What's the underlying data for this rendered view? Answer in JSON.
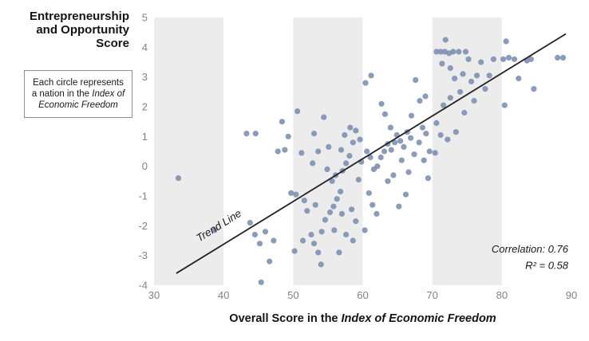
{
  "title": {
    "lines": [
      "Entrepreneurship",
      "and Opportunity",
      "Score"
    ]
  },
  "note": {
    "prefix": "Each circle represents a nation in the ",
    "italic": "Index of Economic Freedom"
  },
  "xaxis": {
    "prefix": "Overall Score in the ",
    "italic": "Index of Economic Freedom"
  },
  "chart_data": {
    "type": "scatter",
    "title": "Entrepreneurship and Opportunity Score",
    "xlabel": "Overall Score in the Index of Economic Freedom",
    "ylabel": "Entrepreneurship and Opportunity Score",
    "xlim": [
      30,
      90
    ],
    "ylim": [
      -4,
      5
    ],
    "x_ticks": [
      30,
      40,
      50,
      60,
      70,
      80,
      90
    ],
    "y_ticks": [
      5,
      4,
      3,
      2,
      1,
      0,
      -1,
      -2,
      -3,
      -4
    ],
    "grid": false,
    "bands": [
      [
        30,
        40
      ],
      [
        50,
        60
      ],
      [
        70,
        80
      ]
    ],
    "band_color": "#ececec",
    "point_color": "#7b8db0",
    "trend_line": {
      "x1": 33.2,
      "y1": -3.6,
      "x2": 89.2,
      "y2": 4.45,
      "label": "Trend Line",
      "label_pos": {
        "x": 36.5,
        "y": -2.55
      }
    },
    "annotations": {
      "correlation": "Correlation: 0.76",
      "r_squared": "R² = 0.58"
    },
    "points": [
      [
        33.5,
        -0.4
      ],
      [
        38.7,
        -2.15
      ],
      [
        43.3,
        1.1
      ],
      [
        44.6,
        1.1
      ],
      [
        43.8,
        -1.9
      ],
      [
        44.5,
        -2.3
      ],
      [
        45.2,
        -2.6
      ],
      [
        46.0,
        -2.2
      ],
      [
        46.6,
        -3.2
      ],
      [
        45.4,
        -3.9
      ],
      [
        47.2,
        -2.5
      ],
      [
        47.8,
        0.5
      ],
      [
        48.8,
        0.55
      ],
      [
        48.4,
        1.5
      ],
      [
        49.3,
        1.0
      ],
      [
        49.7,
        -0.9
      ],
      [
        50.2,
        -2.85
      ],
      [
        50.6,
        1.85
      ],
      [
        51.2,
        0.45
      ],
      [
        50.4,
        -0.95
      ],
      [
        51.6,
        -1.15
      ],
      [
        52.0,
        -1.5
      ],
      [
        52.6,
        -2.3
      ],
      [
        51.4,
        -2.5
      ],
      [
        53.0,
        -2.6
      ],
      [
        53.6,
        -2.9
      ],
      [
        54.0,
        -3.3
      ],
      [
        54.1,
        -2.2
      ],
      [
        54.6,
        -1.8
      ],
      [
        53.2,
        -1.3
      ],
      [
        53.0,
        1.1
      ],
      [
        54.4,
        1.65
      ],
      [
        53.6,
        0.5
      ],
      [
        52.8,
        0.1
      ],
      [
        54.9,
        -0.1
      ],
      [
        55.3,
        -1.55
      ],
      [
        55.8,
        -1.35
      ],
      [
        56.3,
        -1.1
      ],
      [
        56.8,
        -0.85
      ],
      [
        55.6,
        -0.5
      ],
      [
        56.1,
        -0.3
      ],
      [
        57.1,
        -0.15
      ],
      [
        57.6,
        0.1
      ],
      [
        58.1,
        0.35
      ],
      [
        58.6,
        0.8
      ],
      [
        57.4,
        1.05
      ],
      [
        58.2,
        1.3
      ],
      [
        59.0,
        1.2
      ],
      [
        59.6,
        0.9
      ],
      [
        58.4,
        -1.45
      ],
      [
        59.0,
        -1.85
      ],
      [
        57.6,
        -2.3
      ],
      [
        58.6,
        -2.5
      ],
      [
        56.6,
        -2.9
      ],
      [
        59.4,
        -0.45
      ],
      [
        55.1,
        0.65
      ],
      [
        56.9,
        0.55
      ],
      [
        59.8,
        0.15
      ],
      [
        55.9,
        -2.15
      ],
      [
        57.0,
        -1.6
      ],
      [
        60.4,
        2.8
      ],
      [
        61.2,
        3.05
      ],
      [
        60.6,
        0.5
      ],
      [
        61.1,
        0.3
      ],
      [
        61.6,
        -0.1
      ],
      [
        62.1,
        0.0
      ],
      [
        62.6,
        0.3
      ],
      [
        63.1,
        0.5
      ],
      [
        63.6,
        0.75
      ],
      [
        64.1,
        0.55
      ],
      [
        64.6,
        0.8
      ],
      [
        63.2,
        1.75
      ],
      [
        62.7,
        2.1
      ],
      [
        60.9,
        -0.9
      ],
      [
        61.4,
        -1.3
      ],
      [
        60.3,
        -2.15
      ],
      [
        62.0,
        -1.6
      ],
      [
        63.6,
        -0.5
      ],
      [
        64.4,
        -0.3
      ],
      [
        64.0,
        1.3
      ],
      [
        64.9,
        1.05
      ],
      [
        65.4,
        0.85
      ],
      [
        65.9,
        0.65
      ],
      [
        66.4,
        1.15
      ],
      [
        66.9,
        0.95
      ],
      [
        65.6,
        0.2
      ],
      [
        66.6,
        -0.2
      ],
      [
        67.4,
        0.4
      ],
      [
        68.1,
        0.8
      ],
      [
        68.6,
        1.3
      ],
      [
        69.1,
        1.1
      ],
      [
        69.6,
        0.5
      ],
      [
        68.2,
        2.2
      ],
      [
        69.0,
        2.35
      ],
      [
        67.6,
        2.9
      ],
      [
        66.2,
        -0.95
      ],
      [
        65.2,
        -1.35
      ],
      [
        69.4,
        -0.4
      ],
      [
        67.0,
        1.7
      ],
      [
        68.8,
        0.2
      ],
      [
        70.6,
        3.85
      ],
      [
        71.2,
        3.85
      ],
      [
        71.8,
        3.85
      ],
      [
        72.4,
        3.8
      ],
      [
        73.0,
        3.85
      ],
      [
        73.8,
        3.85
      ],
      [
        71.9,
        4.25
      ],
      [
        71.4,
        3.45
      ],
      [
        72.6,
        3.3
      ],
      [
        73.2,
        2.95
      ],
      [
        74.4,
        3.1
      ],
      [
        74.8,
        3.85
      ],
      [
        75.2,
        3.6
      ],
      [
        74.0,
        2.5
      ],
      [
        72.6,
        2.3
      ],
      [
        71.6,
        2.05
      ],
      [
        70.6,
        1.45
      ],
      [
        71.2,
        1.05
      ],
      [
        72.2,
        0.9
      ],
      [
        70.4,
        0.45
      ],
      [
        73.4,
        1.15
      ],
      [
        74.6,
        1.8
      ],
      [
        75.6,
        2.85
      ],
      [
        76.4,
        3.05
      ],
      [
        77.0,
        3.5
      ],
      [
        77.6,
        2.6
      ],
      [
        76.0,
        2.2
      ],
      [
        78.2,
        3.05
      ],
      [
        78.8,
        3.6
      ],
      [
        80.6,
        4.2
      ],
      [
        80.2,
        3.6
      ],
      [
        81.0,
        3.65
      ],
      [
        81.8,
        3.6
      ],
      [
        82.4,
        2.95
      ],
      [
        83.6,
        3.55
      ],
      [
        84.2,
        3.6
      ],
      [
        84.6,
        2.6
      ],
      [
        80.4,
        2.05
      ],
      [
        88.0,
        3.65
      ],
      [
        88.8,
        3.65
      ]
    ]
  }
}
